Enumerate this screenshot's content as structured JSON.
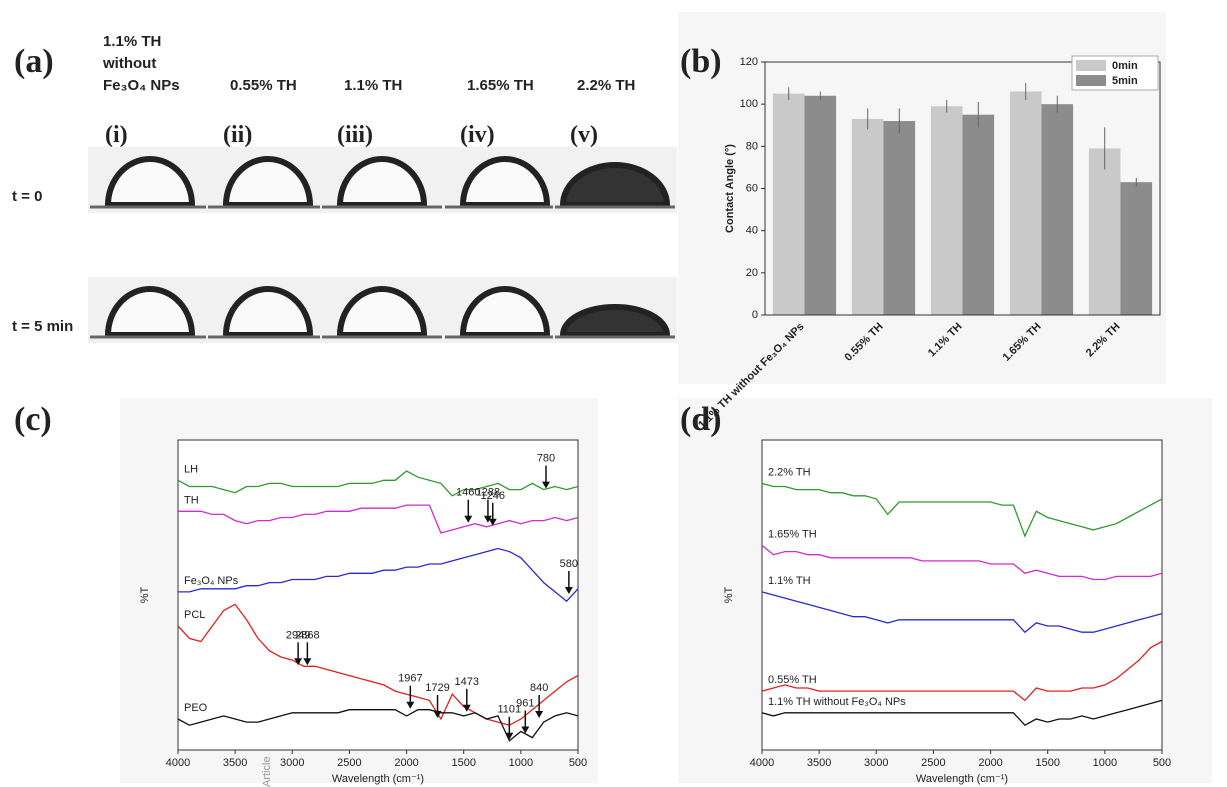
{
  "watermark": "Article",
  "panel_a": {
    "label": "(a)",
    "columns": [
      {
        "header": [
          "1.1% TH",
          "without",
          "Fe₃O₄ NPs"
        ],
        "numeral": "(i)"
      },
      {
        "header": [
          "0.55% TH"
        ],
        "numeral": "(ii)"
      },
      {
        "header": [
          "1.1% TH"
        ],
        "numeral": "(iii)"
      },
      {
        "header": [
          "1.65% TH"
        ],
        "numeral": "(iv)"
      },
      {
        "header": [
          "2.2% TH"
        ],
        "numeral": "(v)"
      }
    ],
    "rows": [
      "t = 0",
      "t = 5 min"
    ]
  },
  "chart_data": [
    {
      "type": "bar",
      "label": "(b)",
      "ylabel": "Contact Angle (°)",
      "categories": [
        "1.1% TH without Fe₃O₄ NPs",
        "0.55% TH",
        "1.1% TH",
        "1.65% TH",
        "2.2% TH"
      ],
      "series": [
        {
          "name": "0min",
          "color": "#c9c9c9",
          "values": [
            105,
            93,
            99,
            106,
            79
          ],
          "errors": [
            3,
            5,
            3,
            4,
            10
          ]
        },
        {
          "name": "5min",
          "color": "#8c8c8c",
          "values": [
            104,
            92,
            95,
            100,
            63
          ],
          "errors": [
            2,
            6,
            6,
            4,
            2
          ]
        }
      ],
      "ylim": [
        0,
        120
      ],
      "yticks": [
        0,
        20,
        40,
        60,
        80,
        100,
        120
      ],
      "legend": "upper-right"
    },
    {
      "type": "line",
      "label": "(c)",
      "xlabel": "Wavelength (cm⁻¹)",
      "ylabel": "%T",
      "x": [
        4000,
        3900,
        3800,
        3700,
        3600,
        3500,
        3400,
        3300,
        3200,
        3100,
        3000,
        2900,
        2800,
        2700,
        2600,
        2500,
        2400,
        2300,
        2200,
        2100,
        2000,
        1900,
        1800,
        1700,
        1600,
        1500,
        1400,
        1300,
        1200,
        1100,
        1000,
        900,
        800,
        700,
        600,
        500
      ],
      "xlim": [
        4000,
        500
      ],
      "xticks": [
        4000,
        3500,
        3000,
        2500,
        2000,
        1500,
        1000,
        500
      ],
      "ylim": [
        0,
        100
      ],
      "series": [
        {
          "name": "LH",
          "color": "#2e9a2e",
          "values": [
            87,
            85,
            85,
            85,
            84,
            83,
            85,
            85,
            86,
            86,
            85,
            85,
            85,
            85,
            85,
            86,
            86,
            86,
            87,
            87,
            90,
            88,
            87,
            86,
            82,
            84,
            84,
            85,
            86,
            84,
            84,
            86,
            84,
            85,
            84,
            85
          ]
        },
        {
          "name": "TH",
          "color": "#d02ad0",
          "values": [
            77,
            77,
            77,
            76,
            76,
            74,
            73,
            74,
            74,
            75,
            75,
            76,
            76,
            77,
            77,
            77,
            78,
            78,
            78,
            78,
            79,
            79,
            79,
            70,
            71,
            72,
            73,
            72,
            73,
            74,
            73,
            74,
            74,
            75,
            74,
            75
          ]
        },
        {
          "name": "Fe₃O₄ NPs",
          "color": "#2a2ad0",
          "values": [
            51,
            51,
            52,
            52,
            52,
            52,
            53,
            53,
            54,
            54,
            55,
            55,
            55,
            56,
            56,
            57,
            57,
            57,
            58,
            58,
            59,
            59,
            60,
            60,
            61,
            62,
            63,
            64,
            65,
            64,
            62,
            58,
            54,
            51,
            48,
            52
          ]
        },
        {
          "name": "PCL",
          "color": "#e02020",
          "values": [
            40,
            36,
            35,
            40,
            45,
            47,
            42,
            36,
            32,
            30,
            29,
            27,
            27,
            26,
            25,
            24,
            23,
            22,
            21,
            19,
            18,
            17,
            16,
            10,
            18,
            14,
            12,
            10,
            9,
            8,
            10,
            13,
            16,
            19,
            22,
            24
          ]
        },
        {
          "name": "PEO",
          "color": "#111111",
          "values": [
            10,
            8,
            9,
            10,
            11,
            10,
            9,
            9,
            10,
            11,
            12,
            12,
            12,
            12,
            12,
            13,
            13,
            13,
            13,
            13,
            11,
            13,
            13,
            12,
            12,
            11,
            12,
            10,
            11,
            3,
            6,
            4,
            9,
            11,
            12,
            11
          ]
        }
      ],
      "annotations": [
        {
          "x": 780,
          "y": 84
        },
        {
          "x": 1460,
          "y": 73
        },
        {
          "x": 1288,
          "y": 73
        },
        {
          "x": 1246,
          "y": 72
        },
        {
          "x": 580,
          "y": 50
        },
        {
          "x": 2868,
          "y": 27
        },
        {
          "x": 2949,
          "y": 27
        },
        {
          "x": 1729,
          "y": 10
        },
        {
          "x": 1967,
          "y": 13
        },
        {
          "x": 1473,
          "y": 12
        },
        {
          "x": 1101,
          "y": 3
        },
        {
          "x": 961,
          "y": 5
        },
        {
          "x": 840,
          "y": 10
        }
      ]
    },
    {
      "type": "line",
      "label": "(d)",
      "xlabel": "Wavelength (cm⁻¹)",
      "ylabel": "%T",
      "x": [
        4000,
        3900,
        3800,
        3700,
        3600,
        3500,
        3400,
        3300,
        3200,
        3100,
        3000,
        2900,
        2800,
        2700,
        2600,
        2500,
        2400,
        2300,
        2200,
        2100,
        2000,
        1900,
        1800,
        1700,
        1600,
        1500,
        1400,
        1300,
        1200,
        1100,
        1000,
        900,
        800,
        700,
        600,
        500
      ],
      "xlim": [
        4000,
        500
      ],
      "xticks": [
        4000,
        3500,
        3000,
        2500,
        2000,
        1500,
        1000,
        500
      ],
      "ylim": [
        0,
        100
      ],
      "series": [
        {
          "name": "2.2% TH",
          "color": "#2e9a2e",
          "values": [
            86,
            85,
            85,
            84,
            84,
            84,
            83,
            83,
            82,
            82,
            81,
            76,
            80,
            80,
            80,
            80,
            80,
            80,
            80,
            80,
            80,
            79,
            79,
            69,
            77,
            75,
            74,
            73,
            72,
            71,
            72,
            73,
            75,
            77,
            79,
            81
          ]
        },
        {
          "name": "1.65% TH",
          "color": "#d02ad0",
          "values": [
            66,
            63,
            64,
            64,
            63,
            63,
            62,
            62,
            62,
            62,
            62,
            62,
            62,
            62,
            61,
            61,
            61,
            61,
            61,
            61,
            60,
            60,
            60,
            57,
            58,
            57,
            56,
            56,
            56,
            55,
            55,
            56,
            56,
            56,
            56,
            57
          ]
        },
        {
          "name": "1.1% TH",
          "color": "#2a2ad0",
          "values": [
            51,
            50,
            49,
            48,
            47,
            46,
            45,
            44,
            43,
            43,
            42,
            41,
            42,
            42,
            42,
            42,
            42,
            42,
            42,
            42,
            42,
            42,
            42,
            38,
            41,
            40,
            40,
            39,
            38,
            38,
            39,
            40,
            41,
            42,
            43,
            44
          ]
        },
        {
          "name": "0.55% TH",
          "color": "#e02020",
          "values": [
            19,
            20,
            21,
            20,
            20,
            19,
            19,
            19,
            19,
            19,
            19,
            19,
            19,
            19,
            19,
            19,
            19,
            19,
            19,
            19,
            19,
            19,
            19,
            16,
            20,
            19,
            19,
            19,
            20,
            20,
            21,
            23,
            26,
            29,
            33,
            35
          ]
        },
        {
          "name": "1.1% TH without Fe₃O₄ NPs",
          "color": "#111111",
          "values": [
            12,
            11,
            12,
            12,
            12,
            12,
            12,
            12,
            12,
            12,
            12,
            12,
            12,
            12,
            12,
            12,
            12,
            12,
            12,
            12,
            12,
            12,
            12,
            8,
            10,
            9,
            10,
            10,
            11,
            10,
            11,
            12,
            13,
            14,
            15,
            16
          ]
        }
      ]
    }
  ]
}
